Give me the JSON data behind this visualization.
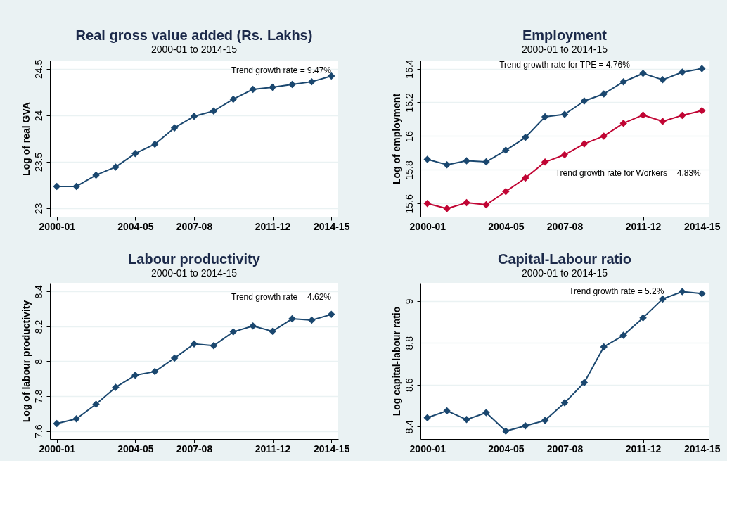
{
  "chart_data": [
    {
      "type": "line",
      "title": "Real gross value added (Rs. Lakhs)",
      "subtitle": "2000-01 to 2014-15",
      "ylabel": "Log of real GVA",
      "categories": [
        "2000-01",
        null,
        null,
        null,
        "2004-05",
        null,
        null,
        "2007-08",
        null,
        null,
        null,
        "2011-12",
        null,
        null,
        "2014-15"
      ],
      "series": [
        {
          "color": "#1a476f",
          "values": [
            23.236,
            23.236,
            23.357,
            23.444,
            23.59,
            23.69,
            23.866,
            23.99,
            24.047,
            24.174,
            24.28,
            24.303,
            24.333,
            24.362,
            24.424
          ]
        }
      ],
      "ylim": [
        22.91,
        24.59
      ],
      "yticks": [
        23,
        23.5,
        24,
        24.5
      ],
      "grid": "y",
      "marker": "diamond",
      "annotations": [
        "Trend growth rate = 9.47%"
      ]
    },
    {
      "type": "line",
      "title": "Employment",
      "subtitle": "2000-01 to 2014-15",
      "ylabel": "Log of employment",
      "categories": [
        "2000-01",
        null,
        null,
        null,
        "2004-05",
        null,
        null,
        "2007-08",
        null,
        null,
        null,
        "2011-12",
        null,
        null,
        "2014-15"
      ],
      "series": [
        {
          "color": "#1a476f",
          "values": [
            15.862,
            15.83,
            15.854,
            15.847,
            15.916,
            15.992,
            16.114,
            16.129,
            16.208,
            16.25,
            16.322,
            16.372,
            16.334,
            16.379,
            16.4
          ]
        },
        {
          "color": "#c10534",
          "values": [
            15.6,
            15.57,
            15.605,
            15.593,
            15.671,
            15.751,
            15.846,
            15.889,
            15.954,
            16.0,
            16.076,
            16.125,
            16.087,
            16.123,
            16.151
          ]
        }
      ],
      "ylim": [
        15.522,
        16.448
      ],
      "yticks": [
        15.6,
        15.8,
        16,
        16.2,
        16.4
      ],
      "grid": "y",
      "marker": "diamond",
      "annotations": [
        "Trend growth rate for TPE = 4.76%",
        "Trend growth rate for Workers = 4.83%"
      ]
    },
    {
      "type": "line",
      "title": "Labour productivity",
      "subtitle": "2000-01 to 2014-15",
      "ylabel": "Log of labour productivity",
      "categories": [
        "2000-01",
        null,
        null,
        null,
        "2004-05",
        null,
        null,
        "2007-08",
        null,
        null,
        null,
        "2011-12",
        null,
        null,
        "2014-15"
      ],
      "series": [
        {
          "color": "#1a476f",
          "values": [
            7.643,
            7.67,
            7.754,
            7.851,
            7.92,
            7.941,
            8.018,
            8.1,
            8.09,
            8.169,
            8.203,
            8.172,
            8.244,
            8.236,
            8.269
          ]
        }
      ],
      "ylim": [
        7.554,
        8.45
      ],
      "yticks": [
        7.6,
        7.8,
        8,
        8.2,
        8.4
      ],
      "grid": "y",
      "marker": "diamond",
      "annotations": [
        "Trend growth rate = 4.62%"
      ]
    },
    {
      "type": "line",
      "title": "Capital-Labour ratio",
      "subtitle": "2000-01 to 2014-15",
      "ylabel": "Log capital-labour ratio",
      "categories": [
        "2000-01",
        null,
        null,
        null,
        "2004-05",
        null,
        null,
        "2007-08",
        null,
        null,
        null,
        "2011-12",
        null,
        null,
        "2014-15"
      ],
      "series": [
        {
          "color": "#1a476f",
          "values": [
            8.442,
            8.475,
            8.433,
            8.466,
            8.378,
            8.403,
            8.429,
            8.513,
            8.61,
            8.781,
            8.836,
            8.92,
            9.01,
            9.045,
            9.036
          ]
        }
      ],
      "ylim": [
        8.34,
        9.087
      ],
      "yticks": [
        8.4,
        8.6,
        8.8,
        9
      ],
      "grid": "y",
      "marker": "diamond",
      "annotations": [
        "Trend growth rate = 5.2%"
      ]
    }
  ]
}
